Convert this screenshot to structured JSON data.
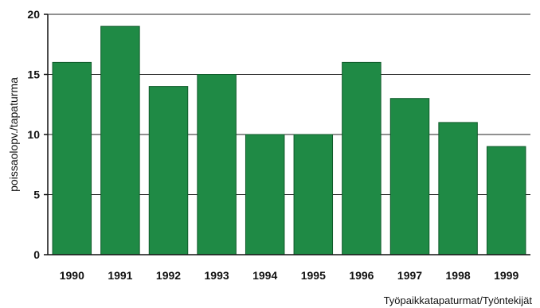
{
  "chart_data": {
    "type": "bar",
    "categories": [
      "1990",
      "1991",
      "1992",
      "1993",
      "1994",
      "1995",
      "1996",
      "1997",
      "1998",
      "1999"
    ],
    "values": [
      16,
      19,
      14,
      15,
      10,
      10,
      16,
      13,
      11,
      9
    ],
    "title": "",
    "xlabel": "",
    "ylabel": "poissaolopv./tapaturma",
    "ylim": [
      0,
      20
    ],
    "yticks": [
      0,
      5,
      10,
      15,
      20
    ],
    "grid": true,
    "legend": "none",
    "colors": {
      "bar": "#1f8a45",
      "bar_edge": "#0f5a2a",
      "grid": "#222222"
    }
  },
  "source_label": "Työpaikkatapaturmat/Työntekijät"
}
